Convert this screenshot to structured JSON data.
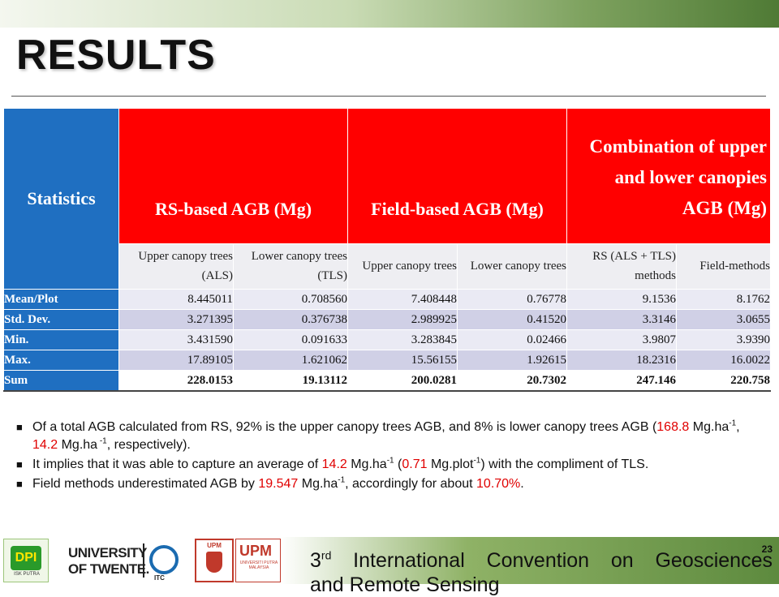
{
  "slide": {
    "title": "RESULTS",
    "page_number": "23"
  },
  "table": {
    "statistics_label": "Statistics",
    "group_headers": [
      "RS-based AGB (Mg)",
      "Field-based AGB (Mg)",
      "Combination of upper and lower canopies AGB (Mg)"
    ],
    "sub_headers": [
      "Upper canopy trees (ALS)",
      "Lower canopy trees (TLS)",
      "Upper canopy trees",
      "Lower canopy trees",
      "RS (ALS + TLS) methods",
      "Field-methods"
    ],
    "rows": [
      {
        "label": "Mean/Plot",
        "values": [
          "8.445011",
          "0.708560",
          "7.408448",
          "0.76778",
          "9.1536",
          "8.1762"
        ]
      },
      {
        "label": "Std. Dev.",
        "values": [
          "3.271395",
          "0.376738",
          "2.989925",
          "0.41520",
          "3.3146",
          "3.0655"
        ]
      },
      {
        "label": "Min.",
        "values": [
          "3.431590",
          "0.091633",
          "3.283845",
          "0.02466",
          "3.9807",
          "3.9390"
        ]
      },
      {
        "label": "Max.",
        "values": [
          "17.89105",
          "1.621062",
          "15.56155",
          "1.92615",
          "18.2316",
          "16.0022"
        ]
      },
      {
        "label": "Sum",
        "values": [
          "228.0153",
          "19.13112",
          "200.0281",
          "20.7302",
          "247.146",
          "220.758"
        ]
      }
    ]
  },
  "bullets": {
    "b1": {
      "t1": "Of a total AGB calculated from RS, 92% is the upper canopy trees AGB, and 8% is lower canopy trees AGB (",
      "v1": "168.8",
      "t2": " Mg.ha",
      "s1": "-1",
      "t3": ", ",
      "v2": "14.2",
      "t4": " Mg.ha",
      "s2": " -1",
      "t5": ", respectively)."
    },
    "b2": {
      "t1": "It implies that it was able to capture an average of ",
      "v1": "14.2",
      "t2": " Mg.ha",
      "s1": "-1",
      "t3": " (",
      "v2": "0.71",
      "t4": " Mg.plot",
      "s2": "-1",
      "t5": ") with the compliment  of TLS."
    },
    "b3": {
      "t1": "Field methods underestimated AGB by ",
      "v1": "19.547",
      "t2": " Mg.ha",
      "s1": "-1",
      "t3": ", accordingly for about ",
      "v2": "10.70%",
      "t4": "."
    },
    "marker": "■"
  },
  "footer": {
    "conference_num": "3",
    "conference_sup": "rd",
    "conference_line1": "International Convention on Geosciences",
    "conference_line2": "and Remote Sensing",
    "logo_dpi_text": "DPI",
    "logo_dpi_caption": "ISK PUTRA",
    "logo_twente_1": "UNIVERSITY",
    "logo_twente_2": "OF TWENTE.",
    "logo_itc": "ITC",
    "logo_upm_small": "UPM",
    "logo_upm_big": "UPM",
    "logo_upm_caption": "UNIVERSITI PUTRA MALAYSIA"
  },
  "colors": {
    "header_red": "#ff0000",
    "statistics_blue": "#1f6fc1",
    "highlight_red": "#e00000",
    "theme_green": "#5d8a3e"
  }
}
